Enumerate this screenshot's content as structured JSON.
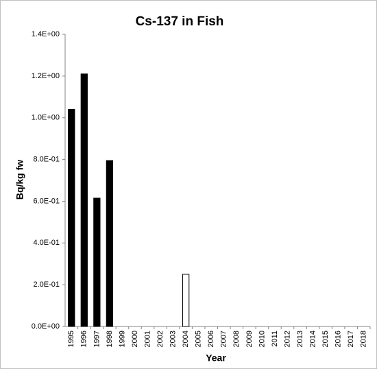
{
  "chart_data": {
    "type": "bar",
    "title": "Cs-137 in Fish",
    "x_label": "Year",
    "y_label": "Bq/kg fw",
    "categories": [
      "1995",
      "1996",
      "1997",
      "1998",
      "1999",
      "2000",
      "2001",
      "2002",
      "2003",
      "2004",
      "2005",
      "2006",
      "2007",
      "2008",
      "2009",
      "2010",
      "2011",
      "2012",
      "2013",
      "2014",
      "2015",
      "2016",
      "2017",
      "2018"
    ],
    "values": [
      1.04,
      1.21,
      0.615,
      0.795,
      null,
      null,
      null,
      null,
      null,
      0.25,
      null,
      null,
      null,
      null,
      null,
      null,
      null,
      null,
      null,
      null,
      null,
      null,
      null,
      null
    ],
    "bar_colors": [
      "#000000",
      "#000000",
      "#000000",
      "#000000",
      null,
      null,
      null,
      null,
      null,
      "#ffffff",
      null,
      null,
      null,
      null,
      null,
      null,
      null,
      null,
      null,
      null,
      null,
      null,
      null,
      null
    ],
    "bar_outline": "#000000",
    "ylim": [
      0,
      1.4
    ],
    "yticks": [
      {
        "value": 0,
        "label": "0.0E+00"
      },
      {
        "value": 0.2,
        "label": "2.0E-01"
      },
      {
        "value": 0.4,
        "label": "4.0E-01"
      },
      {
        "value": 0.6,
        "label": "6.0E-01"
      },
      {
        "value": 0.8,
        "label": "8.0E-01"
      },
      {
        "value": 1.0,
        "label": "1.0E+00"
      },
      {
        "value": 1.2,
        "label": "1.2E+00"
      },
      {
        "value": 1.4,
        "label": "1.4E+00"
      }
    ],
    "grid": false
  }
}
